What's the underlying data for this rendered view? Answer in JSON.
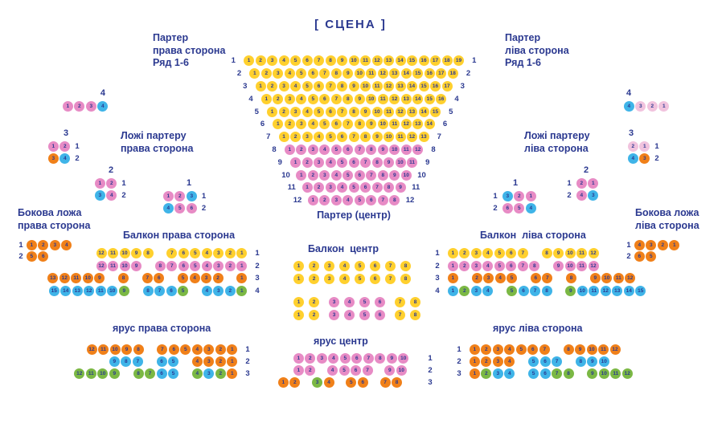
{
  "stage_label": "[ СЦЕНА ]",
  "palette": {
    "y": "#FFD02E",
    "p": "#E78BC5",
    "lp": "#F1C3DE",
    "b": "#3FB4E8",
    "o": "#F08019",
    "g": "#7BB844",
    "text": "#2B3990"
  },
  "titles": {
    "parter_right": [
      "Партер",
      "права сторона",
      "Ряд 1-6"
    ],
    "parter_left": [
      "Партер",
      "ліва сторона",
      "Ряд 1-6"
    ],
    "lozhi_right": [
      "Ложі партеру",
      "права сторона"
    ],
    "lozhi_left": [
      "Ложі партеру",
      "ліва сторона"
    ],
    "bokova_right": [
      "Бокова ложа",
      "права сторона"
    ],
    "bokova_left": [
      "Бокова ложа",
      "ліва сторона"
    ],
    "balkon_right": [
      "Балкон права сторона"
    ],
    "balkon_center": [
      "Балкон  центр"
    ],
    "balkon_left": [
      "Балкон  ліва сторона"
    ],
    "yarus_right": [
      "ярус права сторона"
    ],
    "yarus_center": [
      "ярус центр"
    ],
    "yarus_left": [
      "ярус ліва сторона"
    ]
  },
  "sections": {
    "parter_center": {
      "caption": "Партер (центр)",
      "rows": [
        {
          "left": "1",
          "right": "1",
          "groups": [
            [
              1,
              19,
              "y",
              0
            ]
          ]
        },
        {
          "left": "2",
          "right": "2",
          "groups": [
            [
              1,
              18,
              "y",
              0
            ]
          ]
        },
        {
          "left": "3",
          "right": "3",
          "groups": [
            [
              1,
              17,
              "y",
              0
            ]
          ]
        },
        {
          "left": "4",
          "right": "4",
          "groups": [
            [
              1,
              16,
              "y",
              0
            ]
          ]
        },
        {
          "left": "5",
          "right": "5",
          "groups": [
            [
              1,
              15,
              "y",
              0
            ]
          ]
        },
        {
          "left": "6",
          "right": "6",
          "groups": [
            [
              1,
              14,
              "y",
              0
            ]
          ]
        },
        {
          "left": "7",
          "right": "7",
          "groups": [
            [
              1,
              13,
              "y",
              0
            ]
          ]
        },
        {
          "left": "8",
          "right": "8",
          "groups": [
            [
              1,
              12,
              "p",
              0
            ]
          ]
        },
        {
          "left": "9",
          "right": "9",
          "groups": [
            [
              1,
              11,
              "p",
              0
            ]
          ]
        },
        {
          "left": "10",
          "right": "10",
          "groups": [
            [
              1,
              10,
              "p",
              0
            ]
          ]
        },
        {
          "left": "11",
          "right": "11",
          "groups": [
            [
              1,
              9,
              "p",
              0
            ]
          ]
        },
        {
          "left": "12",
          "right": "12",
          "groups": [
            [
              1,
              8,
              "p",
              0
            ]
          ]
        }
      ]
    },
    "lozhi_right": {
      "b4": {
        "header": "4",
        "rows": [
          {
            "groups": [
              [
                1,
                3,
                "p",
                0
              ],
              [
                4,
                4,
                "b",
                0
              ]
            ]
          }
        ]
      },
      "b3": {
        "header": "3",
        "rows": [
          {
            "right": "1",
            "groups": [
              [
                1,
                2,
                "p",
                0
              ]
            ]
          },
          {
            "right": "2",
            "groups": [
              [
                3,
                3,
                "o",
                0
              ],
              [
                4,
                4,
                "b",
                0
              ]
            ]
          }
        ]
      },
      "b2": {
        "header": "2",
        "rows": [
          {
            "right": "1",
            "groups": [
              [
                1,
                2,
                "p",
                0
              ]
            ]
          },
          {
            "right": "2",
            "groups": [
              [
                3,
                3,
                "b",
                0
              ],
              [
                4,
                4,
                "p",
                0
              ]
            ]
          }
        ]
      },
      "b1": {
        "header": "1",
        "rows": [
          {
            "right": "1",
            "groups": [
              [
                1,
                2,
                "p",
                0
              ],
              [
                3,
                3,
                "b",
                0
              ]
            ]
          },
          {
            "right": "2",
            "groups": [
              [
                4,
                4,
                "b",
                0
              ],
              [
                5,
                6,
                "p",
                0
              ]
            ]
          }
        ]
      }
    },
    "lozhi_left": {
      "b4": {
        "header": "4",
        "rows": [
          {
            "groups": [
              [
                4,
                4,
                "b",
                0
              ],
              [
                3,
                1,
                "lp",
                0
              ]
            ]
          }
        ]
      },
      "b3": {
        "header": "3",
        "rows": [
          {
            "right": "1",
            "groups": [
              [
                2,
                1,
                "lp",
                0
              ]
            ]
          },
          {
            "right": "2",
            "groups": [
              [
                4,
                4,
                "b",
                0
              ],
              [
                3,
                3,
                "o",
                0
              ]
            ]
          }
        ]
      },
      "b2": {
        "header": "2",
        "rows": [
          {
            "left": "1",
            "groups": [
              [
                2,
                1,
                "p",
                0
              ]
            ]
          },
          {
            "left": "2",
            "groups": [
              [
                4,
                4,
                "p",
                0
              ],
              [
                3,
                3,
                "b",
                0
              ]
            ]
          }
        ]
      },
      "b1": {
        "header": "1",
        "rows": [
          {
            "left": "1",
            "groups": [
              [
                3,
                3,
                "b",
                0
              ],
              [
                2,
                1,
                "p",
                0
              ]
            ]
          },
          {
            "left": "2",
            "groups": [
              [
                6,
                5,
                "p",
                0
              ],
              [
                4,
                4,
                "b",
                0
              ]
            ]
          }
        ]
      }
    },
    "bokova_right": {
      "rows": [
        {
          "left": "1",
          "groups": [
            [
              1,
              4,
              "o",
              0
            ]
          ]
        },
        {
          "left": "2",
          "groups": [
            [
              5,
              6,
              "o",
              0
            ]
          ]
        }
      ]
    },
    "bokova_left": {
      "rows": [
        {
          "left": "1",
          "groups": [
            [
              4,
              1,
              "o",
              0
            ]
          ]
        },
        {
          "left": "2",
          "groups": [
            [
              6,
              5,
              "o",
              0
            ]
          ]
        }
      ]
    },
    "balkon_right": {
      "rows": [
        {
          "right": "1",
          "groups": [
            [
              12,
              8,
              "y",
              0
            ],
            [
              7,
              1,
              "y",
              1
            ]
          ]
        },
        {
          "right": "2",
          "groups": [
            [
              12,
              9,
              "p",
              0
            ],
            [
              8,
              1,
              "p",
              1
            ]
          ]
        },
        {
          "right": "3",
          "groups": [
            [
              13,
              9,
              "o",
              0
            ],
            [
              8,
              8,
              "o",
              1
            ],
            [
              7,
              6,
              "o",
              1
            ],
            [
              5,
              2,
              "o",
              1
            ],
            [
              1,
              1,
              "o",
              1
            ]
          ]
        },
        {
          "right": "4",
          "groups": [
            [
              15,
              10,
              "b",
              0
            ],
            [
              9,
              9,
              "g",
              0
            ],
            [
              8,
              6,
              "b",
              1
            ],
            [
              5,
              5,
              "g",
              0
            ],
            [
              4,
              2,
              "b",
              1
            ],
            [
              1,
              1,
              "g",
              0
            ]
          ]
        }
      ]
    },
    "balkon_center": {
      "rows": [
        {
          "groups": [
            [
              1,
              8,
              "y",
              0
            ]
          ]
        },
        {
          "groups": [
            [
              1,
              8,
              "y",
              0
            ]
          ]
        },
        {
          "groups": [
            [
              1,
              2,
              "y",
              0
            ],
            [
              3,
              6,
              "p",
              1
            ],
            [
              7,
              8,
              "y",
              1
            ]
          ]
        },
        {
          "groups": [
            [
              1,
              2,
              "y",
              0
            ],
            [
              3,
              6,
              "p",
              1
            ],
            [
              7,
              8,
              "y",
              1
            ]
          ]
        }
      ]
    },
    "balkon_left": {
      "rows": [
        {
          "left": "1",
          "groups": [
            [
              1,
              7,
              "y",
              0
            ],
            [
              8,
              12,
              "y",
              1
            ]
          ]
        },
        {
          "left": "2",
          "groups": [
            [
              1,
              8,
              "p",
              0
            ],
            [
              9,
              12,
              "p",
              1
            ]
          ]
        },
        {
          "left": "3",
          "groups": [
            [
              1,
              1,
              "o",
              0
            ],
            [
              2,
              5,
              "o",
              1
            ],
            [
              6,
              7,
              "o",
              1
            ],
            [
              8,
              8,
              "o",
              1
            ],
            [
              9,
              12,
              "o",
              1
            ]
          ]
        },
        {
          "left": "4",
          "groups": [
            [
              1,
              1,
              "b",
              0
            ],
            [
              2,
              2,
              "g",
              0
            ],
            [
              3,
              4,
              "b",
              0
            ],
            [
              5,
              5,
              "g",
              1
            ],
            [
              6,
              8,
              "b",
              0
            ],
            [
              9,
              9,
              "g",
              1
            ],
            [
              10,
              15,
              "b",
              0
            ]
          ]
        }
      ]
    },
    "yarus_right": {
      "rows": [
        {
          "right": "1",
          "groups": [
            [
              12,
              8,
              "o",
              0
            ],
            [
              7,
              1,
              "o",
              1
            ]
          ]
        },
        {
          "right": "2",
          "groups": [
            [
              9,
              7,
              "b",
              0
            ],
            [
              6,
              5,
              "b",
              1
            ],
            [
              4,
              1,
              "o",
              1
            ]
          ]
        },
        {
          "right": "3",
          "groups": [
            [
              12,
              9,
              "g",
              0
            ],
            [
              8,
              7,
              "g",
              1
            ],
            [
              6,
              5,
              "b",
              0
            ],
            [
              4,
              4,
              "g",
              1
            ],
            [
              3,
              3,
              "b",
              0
            ],
            [
              2,
              2,
              "g",
              0
            ],
            [
              1,
              1,
              "o",
              0
            ]
          ]
        }
      ]
    },
    "yarus_center": {
      "rows": [
        {
          "right": "1",
          "groups": [
            [
              1,
              10,
              "p",
              0
            ]
          ]
        },
        {
          "right": "2",
          "groups": [
            [
              1,
              2,
              "p",
              0
            ],
            [
              4,
              7,
              "p",
              1
            ],
            [
              9,
              10,
              "p",
              1
            ]
          ]
        },
        {
          "right": "3",
          "groups": [
            [
              1,
              2,
              "o",
              0
            ],
            [
              3,
              3,
              "g",
              1
            ],
            [
              4,
              4,
              "o",
              0
            ],
            [
              5,
              6,
              "o",
              1
            ],
            [
              7,
              8,
              "o",
              1
            ]
          ]
        }
      ]
    },
    "yarus_left": {
      "rows": [
        {
          "left": "1",
          "groups": [
            [
              1,
              7,
              "o",
              0
            ],
            [
              8,
              12,
              "o",
              1
            ]
          ]
        },
        {
          "left": "2",
          "groups": [
            [
              1,
              4,
              "o",
              0
            ],
            [
              5,
              7,
              "b",
              1
            ],
            [
              8,
              10,
              "b",
              1
            ]
          ]
        },
        {
          "left": "3",
          "groups": [
            [
              1,
              1,
              "o",
              0
            ],
            [
              2,
              2,
              "g",
              0
            ],
            [
              3,
              4,
              "b",
              0
            ],
            [
              5,
              6,
              "b",
              1
            ],
            [
              7,
              8,
              "g",
              0
            ],
            [
              9,
              12,
              "g",
              1
            ]
          ]
        }
      ]
    }
  }
}
